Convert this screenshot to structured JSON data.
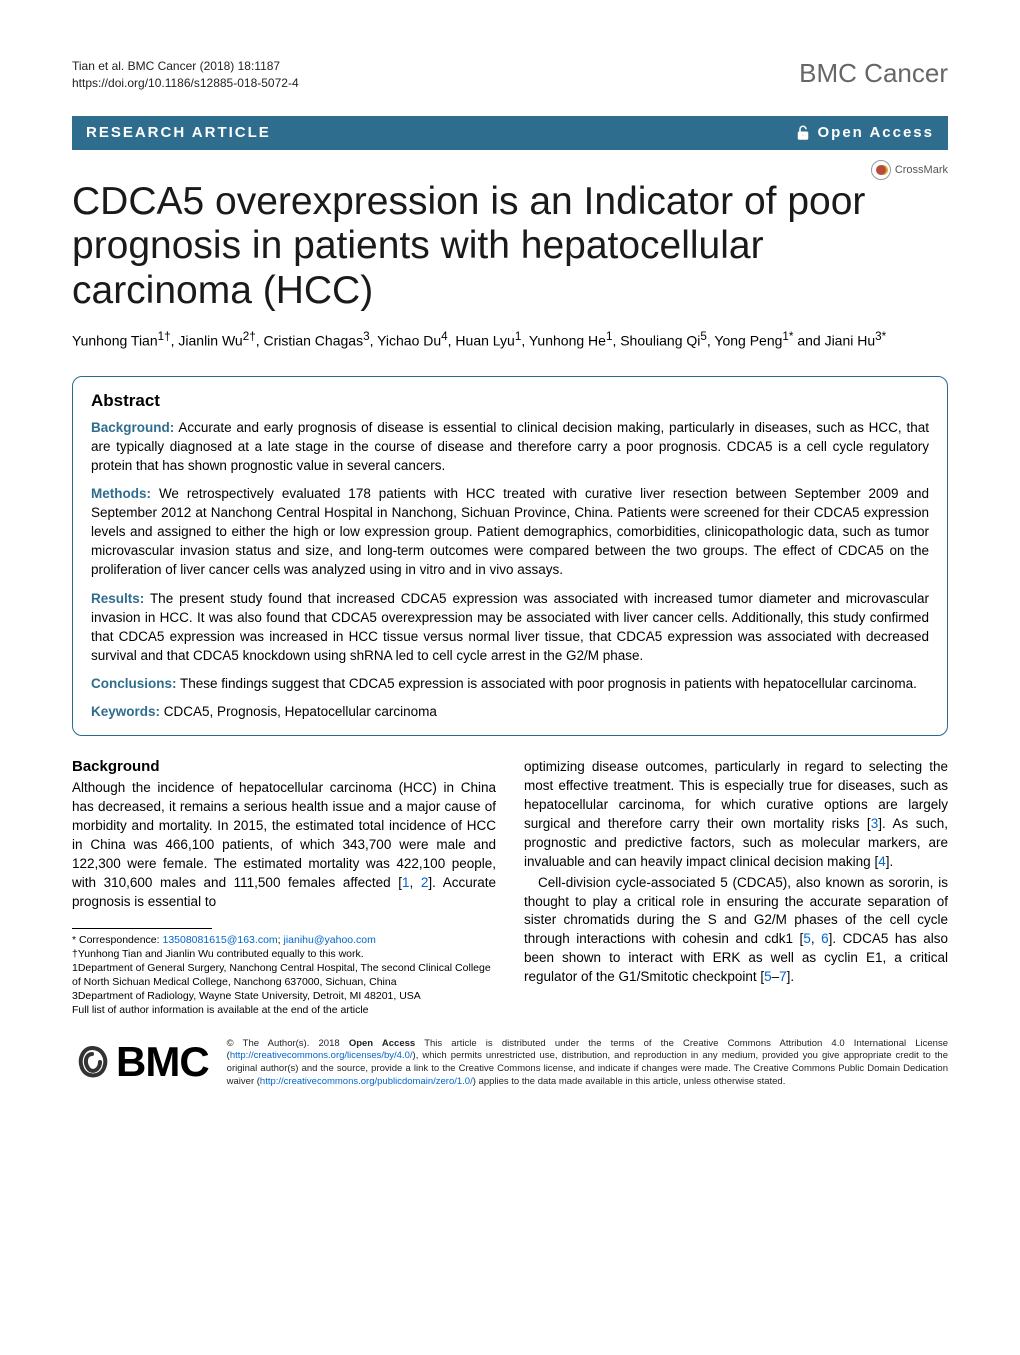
{
  "meta": {
    "citation_line1": "Tian et al. BMC Cancer          (2018) 18:1187",
    "doi_line": "https://doi.org/10.1186/s12885-018-5072-4",
    "journal": "BMC Cancer"
  },
  "bar": {
    "article_type": "RESEARCH ARTICLE",
    "open_access": "Open Access"
  },
  "crossmark": {
    "label": "CrossMark"
  },
  "title": "CDCA5 overexpression is an Indicator of poor prognosis in patients with hepatocellular carcinoma (HCC)",
  "authors_html": "Yunhong Tian<sup>1†</sup>, Jianlin Wu<sup>2†</sup>, Cristian Chagas<sup>3</sup>, Yichao Du<sup>4</sup>, Huan Lyu<sup>1</sup>, Yunhong He<sup>1</sup>, Shouliang Qi<sup>5</sup>, Yong Peng<sup>1*</sup> and Jiani Hu<sup>3*</sup>",
  "abstract": {
    "heading": "Abstract",
    "background_label": "Background:",
    "background": "Accurate and early prognosis of disease is essential to clinical decision making, particularly in diseases, such as HCC, that are typically diagnosed at a late stage in the course of disease and therefore carry a poor prognosis. CDCA5 is a cell cycle regulatory protein that has shown prognostic value in several cancers.",
    "methods_label": "Methods:",
    "methods": "We retrospectively evaluated 178 patients with HCC treated with curative liver resection between September 2009 and September 2012 at Nanchong Central Hospital in Nanchong, Sichuan Province, China. Patients were screened for their CDCA5 expression levels and assigned to either the high or low expression group. Patient demographics, comorbidities, clinicopathologic data, such as tumor microvascular invasion status and size, and long-term outcomes were compared between the two groups. The effect of CDCA5 on the proliferation of liver cancer cells was analyzed using in vitro and in vivo assays.",
    "results_label": "Results:",
    "results": "The present study found that increased CDCA5 expression was associated with increased tumor diameter and microvascular invasion in HCC. It was also found that CDCA5 overexpression may be associated with liver cancer cells. Additionally, this study confirmed that CDCA5 expression was increased in HCC tissue versus normal liver tissue, that CDCA5 expression was associated with decreased survival and that CDCA5 knockdown using shRNA led to cell cycle arrest in the G2/M phase.",
    "conclusions_label": "Conclusions:",
    "conclusions": "These findings suggest that CDCA5 expression is associated with poor prognosis in patients with hepatocellular carcinoma.",
    "keywords_label": "Keywords:",
    "keywords": "CDCA5, Prognosis, Hepatocellular carcinoma"
  },
  "body": {
    "background_heading": "Background",
    "left_p1_a": "Although the incidence of hepatocellular carcinoma (HCC) in China has decreased, it remains a serious health issue and a major cause of morbidity and mortality. In 2015, the estimated total incidence of HCC in China was 466,100 patients, of which 343,700 were male and 122,300 were female. The estimated mortality was 422,100 people, with 310,600 males and 111,500 females affected [",
    "left_p1_ref1": "1",
    "left_p1_b": ", ",
    "left_p1_ref2": "2",
    "left_p1_c": "]. Accurate prognosis is essential to",
    "right_p1_a": "optimizing disease outcomes, particularly in regard to selecting the most effective treatment. This is especially true for diseases, such as hepatocellular carcinoma, for which curative options are largely surgical and therefore carry their own mortality risks [",
    "right_p1_ref3": "3",
    "right_p1_b": "]. As such, prognostic and predictive factors, such as molecular markers, are invaluable and can heavily impact clinical decision making [",
    "right_p1_ref4": "4",
    "right_p1_c": "].",
    "right_p2_a": "Cell-division cycle-associated 5 (CDCA5), also known as sororin, is thought to play a critical role in ensuring the accurate separation of sister chromatids during the S and G2/M phases of the cell cycle through interactions with cohesin and cdk1 [",
    "right_p2_ref5": "5",
    "right_p2_b": ", ",
    "right_p2_ref6": "6",
    "right_p2_c": "]. CDCA5 has also been shown to interact with ERK as well as cyclin E1, a critical regulator of the G1/Smitotic checkpoint [",
    "right_p2_ref5b": "5",
    "right_p2_d": "–",
    "right_p2_ref7": "7",
    "right_p2_e": "]."
  },
  "footnotes": {
    "correspondence_label": "* Correspondence: ",
    "email1": "13508081615@163.com",
    "sep": "; ",
    "email2": "jianihu@yahoo.com",
    "equal": "†Yunhong Tian and Jianlin Wu contributed equally to this work.",
    "aff1": "1Department of General Surgery, Nanchong Central Hospital, The second Clinical College of North Sichuan Medical College, Nanchong 637000, Sichuan, China",
    "aff3": "3Department of Radiology, Wayne State University, Detroit, MI 48201, USA",
    "full_list": "Full list of author information is available at the end of the article"
  },
  "footer": {
    "bmc": "BMC",
    "license_a": "© The Author(s). 2018 ",
    "license_oa": "Open Access",
    "license_b": " This article is distributed under the terms of the Creative Commons Attribution 4.0 International License (",
    "license_url1": "http://creativecommons.org/licenses/by/4.0/",
    "license_c": "), which permits unrestricted use, distribution, and reproduction in any medium, provided you give appropriate credit to the original author(s) and the source, provide a link to the Creative Commons license, and indicate if changes were made. The Creative Commons Public Domain Dedication waiver (",
    "license_url2": "http://creativecommons.org/publicdomain/zero/1.0/",
    "license_d": ") applies to the data made available in this article, unless otherwise stated."
  },
  "colors": {
    "bar_bg": "#2f6d8f",
    "abstract_border": "#2a6a8c",
    "link": "#0066cc"
  }
}
